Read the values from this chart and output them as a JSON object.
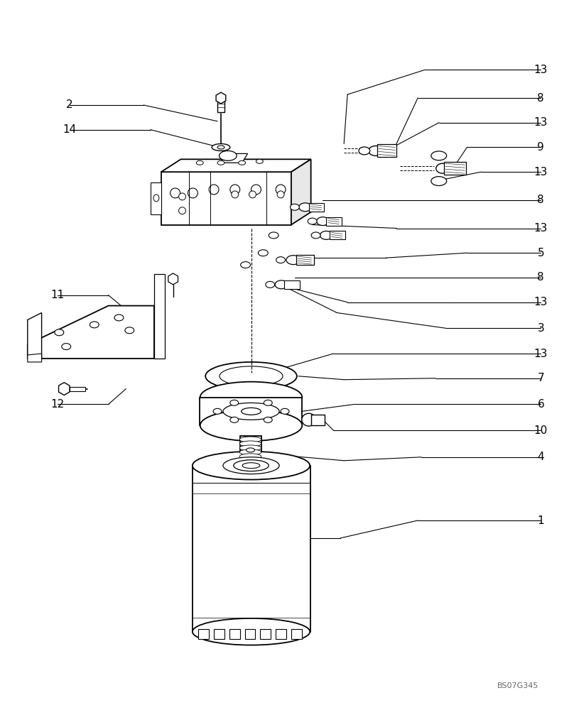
{
  "background_color": "#ffffff",
  "line_color": "#000000",
  "text_color": "#000000",
  "watermark": "BS07G345",
  "fig_width": 8.08,
  "fig_height": 10.0,
  "dpi": 100
}
